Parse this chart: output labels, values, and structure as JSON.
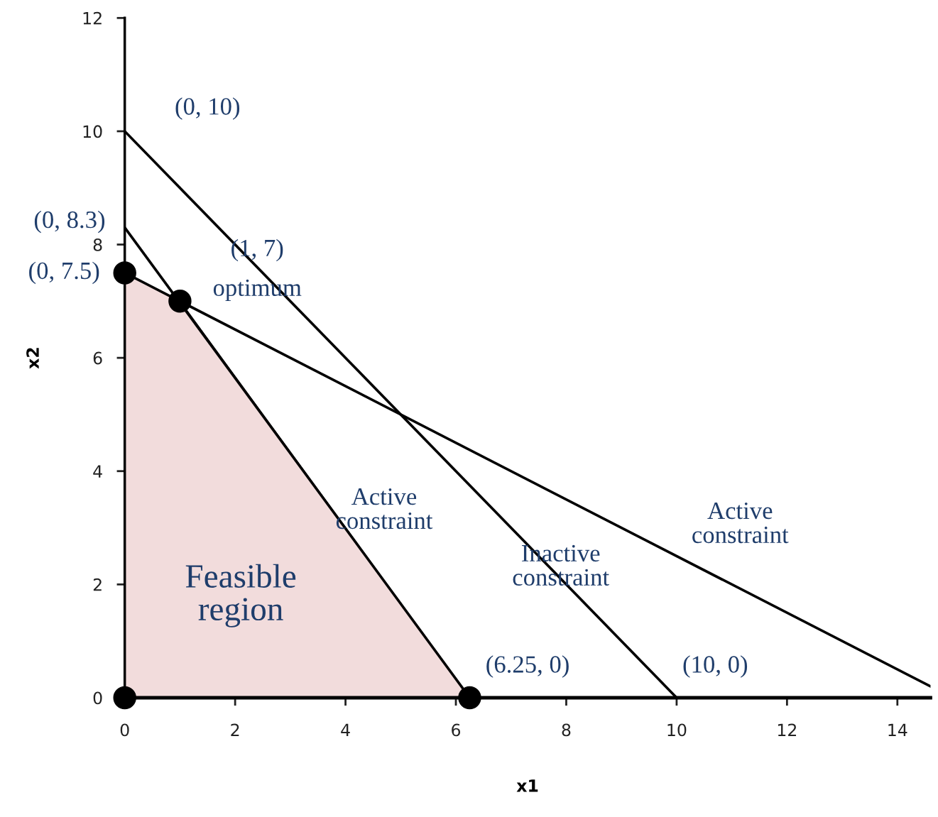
{
  "chart_data": {
    "type": "line",
    "xlabel": "x1",
    "ylabel": "x2",
    "xlim": [
      0,
      14.6
    ],
    "ylim": [
      0,
      12
    ],
    "xticks": [
      0,
      2,
      4,
      6,
      8,
      10,
      12,
      14
    ],
    "yticks": [
      0,
      2,
      4,
      6,
      8,
      10,
      12
    ],
    "grid": false,
    "legend": false,
    "series": [
      {
        "type": "area",
        "color": "#f2dcdc",
        "x": [
          0,
          0,
          1,
          6.25
        ],
        "values": [
          0,
          7.5,
          7,
          0
        ]
      },
      {
        "color": "#000000",
        "x": [
          0,
          10
        ],
        "values": [
          10,
          0
        ]
      },
      {
        "color": "#000000",
        "x": [
          0,
          14.6
        ],
        "values": [
          7.5,
          0.2
        ]
      },
      {
        "color": "#000000",
        "x": [
          0,
          6.25
        ],
        "values": [
          8.3,
          0
        ]
      },
      {
        "type": "scatter",
        "color": "#000000",
        "marker": "circle",
        "x": [
          0,
          0,
          1,
          6.25
        ],
        "values": [
          0,
          7.5,
          7,
          0
        ]
      }
    ],
    "annotations": [
      {
        "text": "(0, 10)",
        "x": 0,
        "y": 10
      },
      {
        "text": "(0, 8.3)",
        "x": 0,
        "y": 8.3
      },
      {
        "text": "(0, 7.5)",
        "x": 0,
        "y": 7.5
      },
      {
        "text": "(1, 7)",
        "x": 1,
        "y": 7
      },
      {
        "text": "optimum",
        "x": 1,
        "y": 7
      },
      "Feasible\nregion",
      {
        "text": "Active\nconstraint",
        "x": 4,
        "y": 3
      },
      {
        "text": "Inactive\nconstraint",
        "x": 8,
        "y": 2
      },
      {
        "text": "Active\nconstraint",
        "x": 10,
        "y": 2.5
      },
      {
        "text": "(6.25, 0)",
        "x": 6.25,
        "y": 0
      },
      {
        "text": "(10, 0)",
        "x": 10,
        "y": 0
      }
    ]
  }
}
